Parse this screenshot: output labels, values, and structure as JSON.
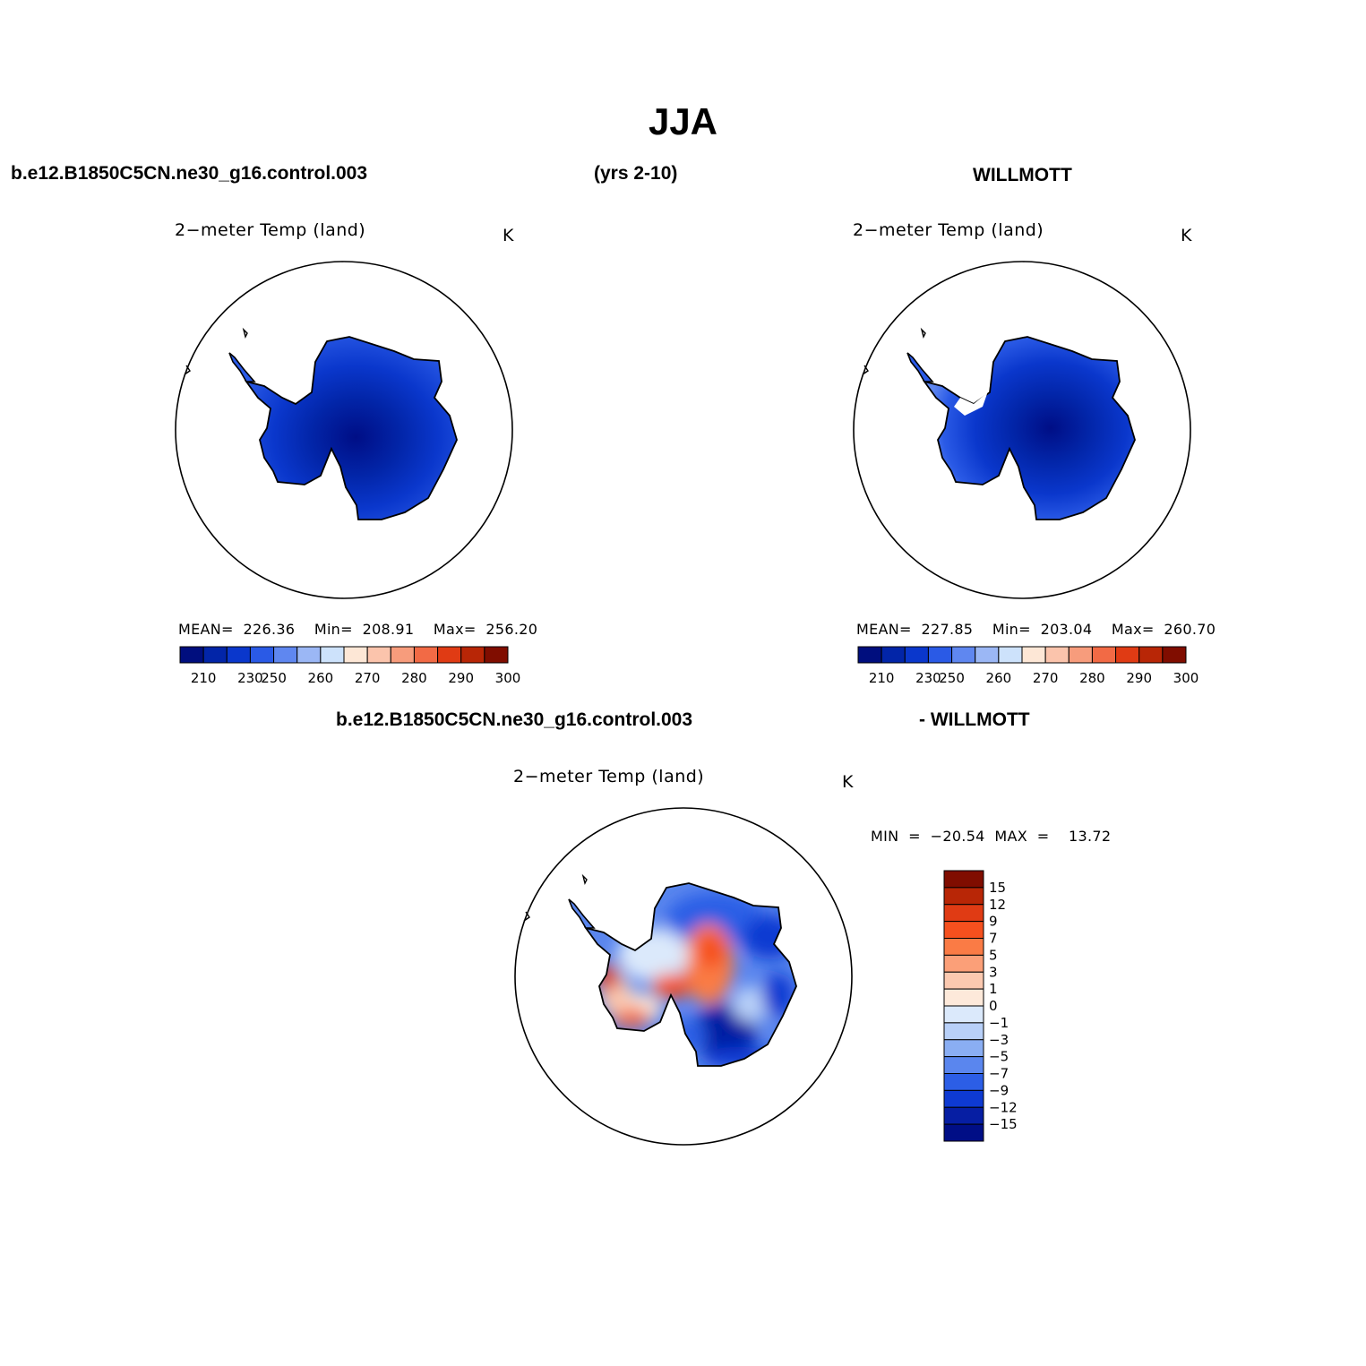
{
  "title": "JJA",
  "case_name": "b.e12.B1850C5CN.ne30_g16.control.003",
  "years": "(yrs 2-10)",
  "obs_name": "WILLMOTT",
  "diff_case": "b.e12.B1850C5CN.ne30_g16.control.003",
  "diff_obs": "- WILLMOTT",
  "panels": {
    "model": {
      "title": "2−meter Temp (land)",
      "units": "K",
      "stats": "MEAN=  226.36    Min=  208.91    Max=  256.20"
    },
    "obs": {
      "title": "2−meter Temp (land)",
      "units": "K",
      "stats": "MEAN=  227.85    Min=  203.04    Max=  260.70"
    },
    "diff": {
      "title": "2−meter Temp (land)",
      "units": "K",
      "stats": "MIN  =  −20.54  MAX  =    13.72"
    }
  },
  "colorbar_main": {
    "colors": [
      "#000e7e",
      "#0225a8",
      "#0a37cc",
      "#2a5ae6",
      "#5f87f0",
      "#9bb7f5",
      "#cde2fb",
      "#fde7d6",
      "#fbc4ac",
      "#f79c7c",
      "#f26a45",
      "#e03b14",
      "#b82606",
      "#800d00"
    ],
    "labels": [
      "210",
      "230",
      "250",
      "260",
      "270",
      "280",
      "290",
      "300"
    ]
  },
  "colorbar_diff": {
    "colors": [
      "#800d00",
      "#b82606",
      "#e03b14",
      "#f5501e",
      "#fa7b45",
      "#fb9f78",
      "#fbc9b0",
      "#fde9da",
      "#dbe9fb",
      "#b8d0f8",
      "#8aaef3",
      "#5a86ee",
      "#2c5ee6",
      "#0e3ad2",
      "#061ea3",
      "#000e86"
    ],
    "labels": [
      "15",
      "12",
      "9",
      "7",
      "5",
      "3",
      "1",
      "0",
      "−1",
      "−3",
      "−5",
      "−7",
      "−9",
      "−12",
      "−15"
    ]
  }
}
